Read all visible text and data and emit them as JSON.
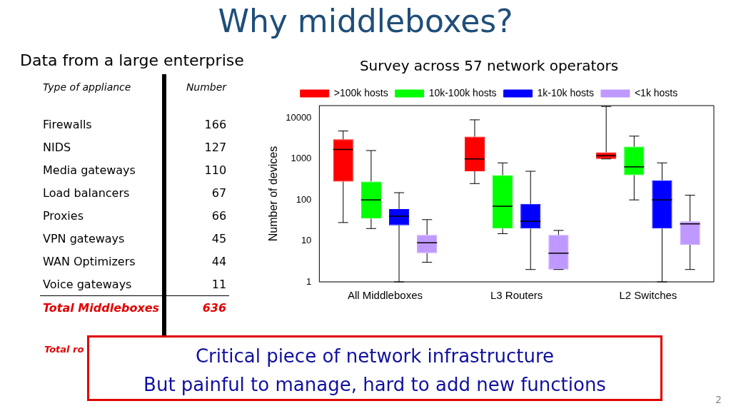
{
  "chart_data": [
    {
      "type": "other",
      "title": "Why middleboxes?",
      "subtitle": "Data from a large enterprise",
      "xlabel": "Type of appliance",
      "ylabel": "Number",
      "categories": [
        "Firewalls",
        "NIDS",
        "Media gateways",
        "Load balancers",
        "Proxies",
        "VPN gateways",
        "WAN Optimizers",
        "Voice gateways",
        "Total Middleboxes"
      ],
      "values": [
        166,
        127,
        110,
        67,
        66,
        45,
        44,
        11,
        636
      ],
      "data_labels": true,
      "annotations": [
        "Total ro",
        "Critical piece of network infrastructure",
        "But painful to manage, hard to add new functions",
        "2"
      ]
    },
    {
      "type": "box",
      "title": "Survey across 57 network operators",
      "ylabel": "Number of devices",
      "categories": [
        "All Middleboxes",
        "L3 Routers",
        "L2 Switches"
      ],
      "log": "y",
      "ylim": [
        1,
        20000
      ],
      "yticks": [
        1,
        10,
        100,
        1000,
        10000
      ],
      "grid": false,
      "legend": "top",
      "series": [
        {
          "name": ">100k hosts",
          "color": "#ff0000",
          "boxes": [
            {
              "low": 28,
              "q1": 280,
              "median": 1700,
              "q3": 3000,
              "high": 4800
            },
            {
              "low": 250,
              "q1": 500,
              "median": 1000,
              "q3": 3500,
              "high": 9000
            },
            {
              "low": 1000,
              "q1": 1000,
              "median": 1200,
              "q3": 1450,
              "high": 19000
            }
          ]
        },
        {
          "name": "10k-100k hosts",
          "color": "#00ff00",
          "boxes": [
            {
              "low": 20,
              "q1": 35,
              "median": 100,
              "q3": 280,
              "high": 1600
            },
            {
              "low": 15,
              "q1": 20,
              "median": 70,
              "q3": 400,
              "high": 800
            },
            {
              "low": 100,
              "q1": 400,
              "median": 640,
              "q3": 2000,
              "high": 3600
            }
          ]
        },
        {
          "name": "1k-10k hosts",
          "color": "#0000ff",
          "boxes": [
            {
              "low": 1,
              "q1": 24,
              "median": 40,
              "q3": 60,
              "high": 150
            },
            {
              "low": 2,
              "q1": 20,
              "median": 30,
              "q3": 80,
              "high": 500
            },
            {
              "low": 1,
              "q1": 20,
              "median": 100,
              "q3": 300,
              "high": 800
            }
          ]
        },
        {
          "name": "<1k hosts",
          "color": "#bf99ff",
          "boxes": [
            {
              "low": 3,
              "q1": 5,
              "median": 9,
              "q3": 14,
              "high": 33
            },
            {
              "low": 2,
              "q1": 2,
              "median": 5,
              "q3": 14,
              "high": 18
            },
            {
              "low": 2,
              "q1": 8,
              "median": 26,
              "q3": 30,
              "high": 130
            }
          ]
        }
      ]
    }
  ]
}
